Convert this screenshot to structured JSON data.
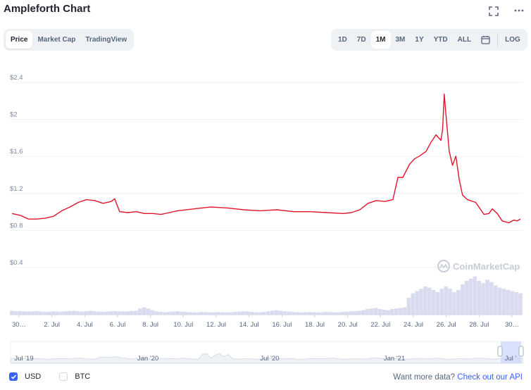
{
  "header": {
    "title": "Ampleforth Chart",
    "fullscreen_icon": "fullscreen-icon",
    "more_icon": "more-icon"
  },
  "tabs": [
    {
      "label": "Price",
      "active": true
    },
    {
      "label": "Market Cap",
      "active": false
    },
    {
      "label": "TradingView",
      "active": false
    }
  ],
  "ranges": [
    {
      "label": "1D",
      "active": false
    },
    {
      "label": "7D",
      "active": false
    },
    {
      "label": "1M",
      "active": true
    },
    {
      "label": "3M",
      "active": false
    },
    {
      "label": "1Y",
      "active": false
    },
    {
      "label": "YTD",
      "active": false
    },
    {
      "label": "ALL",
      "active": false
    }
  ],
  "calendar_icon": "calendar-icon",
  "log_label": "LOG",
  "watermark": "CoinMarketCap",
  "colors": {
    "line": "#e0152b",
    "volume": "#d9dcef",
    "accent": "#3861fb",
    "grid": "#eff2f5"
  },
  "chart_data": {
    "type": "line",
    "ylabels": [
      "$2.4",
      "$2",
      "$1.6",
      "$1.2",
      "$0.8",
      "$0.4"
    ],
    "ylim": [
      0.4,
      2.4
    ],
    "xlabels": [
      "30…",
      "2. Jul",
      "4. Jul",
      "6. Jul",
      "8. Jul",
      "10. Jul",
      "12. Jul",
      "14. Jul",
      "16. Jul",
      "18. Jul",
      "20. Jul",
      "22. Jul",
      "24. Jul",
      "26. Jul",
      "28. Jul",
      "30…"
    ],
    "grid": true,
    "series": [
      {
        "x": [
          0,
          0.5,
          1,
          1.5,
          2,
          2.5,
          3,
          3.5,
          4,
          4.5,
          5,
          5.5,
          6,
          6.2,
          6.5,
          7,
          7.5,
          8,
          8.5,
          9,
          9.5,
          10,
          11,
          12,
          13,
          13.5,
          14,
          15,
          16,
          17,
          18,
          19,
          20,
          20.5,
          21,
          21.5,
          22,
          22.5,
          23,
          23.3,
          23.6,
          24,
          24.3,
          24.6,
          25,
          25.3,
          25.6,
          25.9,
          26,
          26.1,
          26.2,
          26.4,
          26.6,
          26.8,
          27,
          27.2,
          27.5,
          28,
          28.5,
          28.8,
          29,
          29.3,
          29.6,
          30,
          30.3,
          30.5,
          30.7
        ],
        "values": [
          0.93,
          0.91,
          0.87,
          0.87,
          0.88,
          0.9,
          0.96,
          1.0,
          1.05,
          1.08,
          1.07,
          1.04,
          1.06,
          1.09,
          0.95,
          0.94,
          0.95,
          0.93,
          0.93,
          0.92,
          0.94,
          0.96,
          0.98,
          1.0,
          0.99,
          0.98,
          0.97,
          0.96,
          0.97,
          0.95,
          0.95,
          0.94,
          0.93,
          0.94,
          0.97,
          1.04,
          1.07,
          1.06,
          1.08,
          1.32,
          1.32,
          1.46,
          1.52,
          1.55,
          1.6,
          1.7,
          1.78,
          1.72,
          1.84,
          2.22,
          2.0,
          1.6,
          1.45,
          1.55,
          1.3,
          1.13,
          1.08,
          1.05,
          0.92,
          0.93,
          0.98,
          0.93,
          0.85,
          0.83,
          0.86,
          0.85,
          0.87
        ]
      }
    ],
    "volume": [
      0.35,
      0.3,
      0.32,
      0.3,
      0.28,
      0.3,
      0.32,
      0.28,
      0.25,
      0.27,
      0.3,
      0.28,
      0.26,
      0.3,
      0.32,
      0.35,
      0.3,
      0.28,
      0.3,
      0.35,
      0.3,
      0.28,
      0.25,
      0.27,
      0.3,
      0.32,
      0.3,
      0.28,
      0.3,
      0.33,
      0.35,
      0.55,
      0.65,
      0.55,
      0.4,
      0.3,
      0.25,
      0.22,
      0.25,
      0.28,
      0.3,
      0.27,
      0.25,
      0.22,
      0.2,
      0.22,
      0.25,
      0.23,
      0.2,
      0.22,
      0.24,
      0.22,
      0.2,
      0.22,
      0.25,
      0.27,
      0.3,
      0.28,
      0.25,
      0.22,
      0.2,
      0.25,
      0.3,
      0.35,
      0.4,
      0.35,
      0.3,
      0.28,
      0.25,
      0.22,
      0.2,
      0.22,
      0.24,
      0.22,
      0.2,
      0.22,
      0.25,
      0.23,
      0.2,
      0.22,
      0.25,
      0.27,
      0.3,
      0.32,
      0.35,
      0.4,
      0.5,
      0.55,
      0.6,
      0.5,
      0.45,
      0.4,
      0.5,
      0.55,
      0.6,
      0.65,
      1.5,
      1.9,
      2.1,
      2.3,
      2.5,
      2.4,
      2.2,
      2.0,
      2.3,
      2.5,
      2.3,
      2.0,
      2.2,
      2.7,
      3.0,
      3.2,
      3.4,
      3.0,
      2.8,
      3.1,
      2.9,
      2.6,
      2.4,
      2.3,
      2.2,
      2.1,
      2.0,
      1.9
    ]
  },
  "navigator": {
    "labels": [
      "Jul '19",
      "Jan '20",
      "Jul '20",
      "Jan '21",
      "Jul '"
    ]
  },
  "footer": {
    "usd_label": "USD",
    "usd_checked": true,
    "btc_label": "BTC",
    "btc_checked": false,
    "api_prefix": "Want more data?",
    "api_link": "Check out our API"
  }
}
